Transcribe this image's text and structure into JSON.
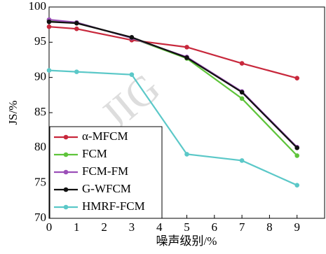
{
  "chart_data": {
    "type": "line",
    "xlabel": "噪声级别/%",
    "ylabel": "JS/%",
    "watermark": "JIG",
    "x": [
      0,
      1,
      3,
      5,
      7,
      9
    ],
    "series": [
      {
        "name": "α-MFCM",
        "color": "#c8283c",
        "values": [
          97.2,
          96.9,
          95.3,
          94.3,
          92.0,
          89.9
        ]
      },
      {
        "name": "FCM",
        "color": "#5ec43a",
        "values": [
          98.1,
          97.8,
          95.6,
          92.7,
          87.0,
          78.9
        ]
      },
      {
        "name": "FCM-FM",
        "color": "#9b4fb8",
        "values": [
          98.2,
          97.8,
          95.6,
          92.9,
          88.0,
          80.1
        ]
      },
      {
        "name": "G-WFCM",
        "color": "#111111",
        "values": [
          97.9,
          97.7,
          95.7,
          92.8,
          87.9,
          80.0
        ]
      },
      {
        "name": "HMRF-FCM",
        "color": "#5bc8c8",
        "values": [
          91.0,
          90.8,
          90.4,
          79.1,
          78.2,
          74.7
        ]
      }
    ],
    "xlim": [
      0,
      10
    ],
    "xticks": [
      0,
      1,
      2,
      3,
      4,
      5,
      6,
      7,
      8,
      9
    ],
    "ylim": [
      70,
      100
    ],
    "yticks": [
      70,
      75,
      80,
      85,
      90,
      95,
      100
    ],
    "legend": "lower left"
  }
}
